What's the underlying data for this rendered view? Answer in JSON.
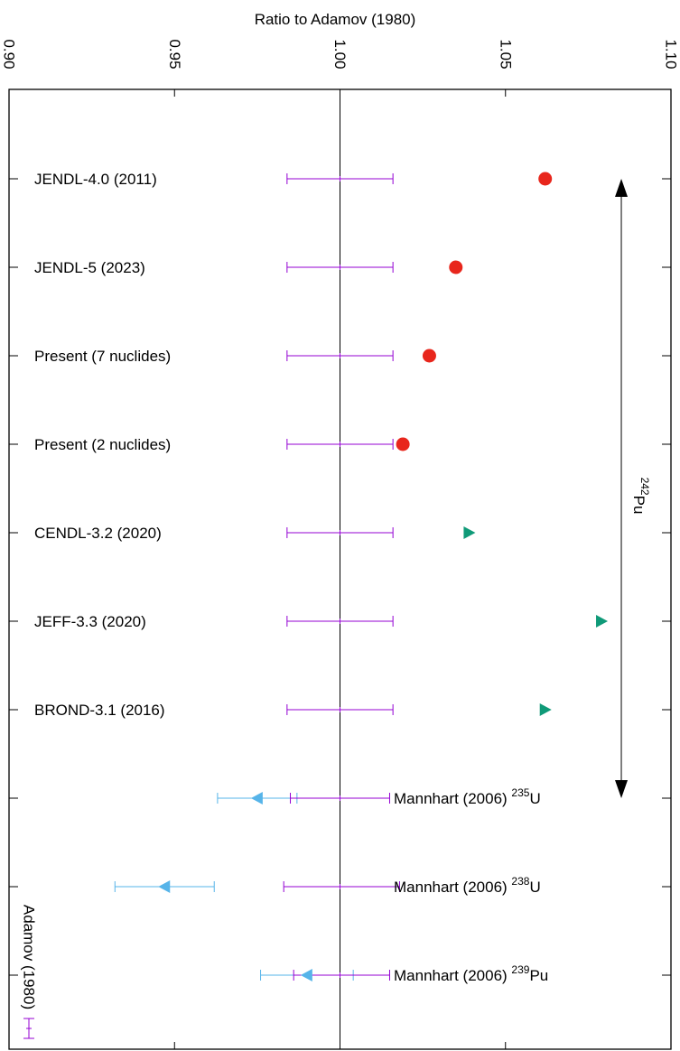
{
  "chart_data": {
    "type": "scatter",
    "title": "",
    "xlabel": "Ratio to Adamov (1980)",
    "ylabel": "",
    "xlim": [
      0.9,
      1.1
    ],
    "x_ticks": [
      "0.90",
      "0.95",
      "1.00",
      "1.05",
      "1.10"
    ],
    "grid": false,
    "reference_line_x": 1.0,
    "rows": [
      {
        "label": "JENDL-4.0 (2011)"
      },
      {
        "label": "JENDL-5 (2023)"
      },
      {
        "label": "Present (7 nuclides)"
      },
      {
        "label": "Present (2 nuclides)"
      },
      {
        "label": "CENDL-3.2 (2020)"
      },
      {
        "label": "JEFF-3.3 (2020)"
      },
      {
        "label": "BROND-3.1 (2016)"
      },
      {
        "label": "Mannhart (2006)",
        "nuclide_mass": "235",
        "nuclide_symbol": "U"
      },
      {
        "label": "Mannhart (2006)",
        "nuclide_mass": "238",
        "nuclide_symbol": "U"
      },
      {
        "label": "Mannhart (2006)",
        "nuclide_mass": "239",
        "nuclide_symbol": "Pu"
      }
    ],
    "series": [
      {
        "marker": "circle",
        "color": "#e8261c",
        "points": [
          {
            "row": 0,
            "x": 1.062
          },
          {
            "row": 1,
            "x": 1.035
          },
          {
            "row": 2,
            "x": 1.027
          },
          {
            "row": 3,
            "x": 1.019
          }
        ]
      },
      {
        "marker": "triangle-right",
        "color": "#0f9a78",
        "points": [
          {
            "row": 4,
            "x": 1.039
          },
          {
            "row": 5,
            "x": 1.079
          },
          {
            "row": 6,
            "x": 1.062
          }
        ]
      },
      {
        "marker": "triangle-left",
        "color": "#56b4e9",
        "points": [
          {
            "row": 7,
            "x": 0.975,
            "xerr_low": 0.963,
            "xerr_high": 0.987
          },
          {
            "row": 8,
            "x": 0.947,
            "xerr_low": 0.932,
            "xerr_high": 0.962
          },
          {
            "row": 9,
            "x": 0.99,
            "xerr_low": 0.976,
            "xerr_high": 1.004
          }
        ]
      },
      {
        "name": "Adamov (1980)",
        "marker": "errorbar",
        "color": "#9400d3",
        "points": [
          {
            "row": 0,
            "x": 1.0,
            "xerr_low": 0.984,
            "xerr_high": 1.016
          },
          {
            "row": 1,
            "x": 1.0,
            "xerr_low": 0.984,
            "xerr_high": 1.016
          },
          {
            "row": 2,
            "x": 1.0,
            "xerr_low": 0.984,
            "xerr_high": 1.016
          },
          {
            "row": 3,
            "x": 1.0,
            "xerr_low": 0.984,
            "xerr_high": 1.016
          },
          {
            "row": 4,
            "x": 1.0,
            "xerr_low": 0.984,
            "xerr_high": 1.016
          },
          {
            "row": 5,
            "x": 1.0,
            "xerr_low": 0.984,
            "xerr_high": 1.016
          },
          {
            "row": 6,
            "x": 1.0,
            "xerr_low": 0.984,
            "xerr_high": 1.016
          },
          {
            "row": 7,
            "x": 1.0,
            "xerr_low": 0.985,
            "xerr_high": 1.015
          },
          {
            "row": 8,
            "x": 1.0,
            "xerr_low": 0.983,
            "xerr_high": 1.018
          },
          {
            "row": 9,
            "x": 1.0,
            "xerr_low": 0.986,
            "xerr_high": 1.015
          }
        ]
      }
    ],
    "annotations": [
      {
        "type": "double-arrow",
        "x": 1.085,
        "from_row": 0,
        "to_row": 7,
        "label_mass": "242",
        "label_symbol": "Pu"
      }
    ],
    "legend": {
      "label": "Adamov (1980)",
      "position": "bottom-left"
    }
  }
}
